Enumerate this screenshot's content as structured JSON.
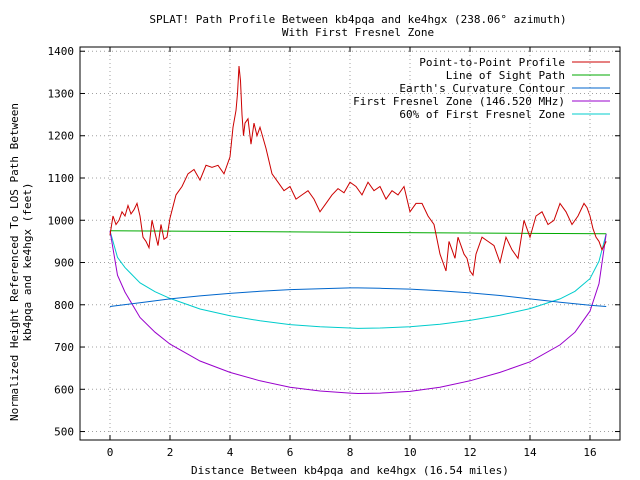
{
  "chart_data": {
    "type": "line",
    "title": "SPLAT! Path Profile Between kb4pqa and ke4hgx (238.06° azimuth)",
    "subtitle": "With First Fresnel Zone",
    "xlabel": "Distance Between kb4pqa and ke4hgx (16.54 miles)",
    "ylabel_line1": "Normalized Height Referenced To LOS Path Between",
    "ylabel_line2": "kb4pqa and ke4hgx (feet)",
    "xlim": [
      -1,
      17
    ],
    "ylim": [
      480,
      1410
    ],
    "xticks": [
      0,
      2,
      4,
      6,
      8,
      10,
      12,
      14,
      16
    ],
    "yticks": [
      500,
      600,
      700,
      800,
      900,
      1000,
      1100,
      1200,
      1300,
      1400
    ],
    "grid": true,
    "legend_position": "top-right",
    "series": [
      {
        "name": "Point-to-Point Profile",
        "color": "#cc0000",
        "x": [
          0,
          0.1,
          0.2,
          0.3,
          0.4,
          0.5,
          0.6,
          0.7,
          0.8,
          0.9,
          1.0,
          1.1,
          1.2,
          1.3,
          1.4,
          1.5,
          1.6,
          1.7,
          1.8,
          1.9,
          2.0,
          2.2,
          2.4,
          2.6,
          2.8,
          3.0,
          3.2,
          3.4,
          3.6,
          3.8,
          4.0,
          4.1,
          4.2,
          4.25,
          4.3,
          4.35,
          4.4,
          4.45,
          4.5,
          4.6,
          4.7,
          4.8,
          4.9,
          5.0,
          5.2,
          5.4,
          5.6,
          5.8,
          6.0,
          6.2,
          6.4,
          6.6,
          6.8,
          7.0,
          7.2,
          7.4,
          7.6,
          7.8,
          8.0,
          8.2,
          8.4,
          8.6,
          8.8,
          9.0,
          9.2,
          9.4,
          9.6,
          9.8,
          10.0,
          10.2,
          10.4,
          10.6,
          10.8,
          11.0,
          11.1,
          11.2,
          11.3,
          11.4,
          11.5,
          11.6,
          11.7,
          11.8,
          11.9,
          12.0,
          12.1,
          12.2,
          12.4,
          12.6,
          12.8,
          13.0,
          13.2,
          13.4,
          13.6,
          13.8,
          14.0,
          14.2,
          14.4,
          14.6,
          14.8,
          15.0,
          15.2,
          15.4,
          15.6,
          15.8,
          15.9,
          16.0,
          16.1,
          16.2,
          16.3,
          16.4,
          16.54
        ],
        "y": [
          965,
          1010,
          990,
          1000,
          1020,
          1010,
          1035,
          1015,
          1025,
          1040,
          1010,
          960,
          950,
          935,
          1000,
          970,
          940,
          990,
          955,
          960,
          1005,
          1060,
          1080,
          1110,
          1120,
          1095,
          1130,
          1125,
          1130,
          1110,
          1150,
          1220,
          1260,
          1300,
          1365,
          1330,
          1250,
          1200,
          1230,
          1240,
          1180,
          1230,
          1200,
          1220,
          1170,
          1110,
          1090,
          1070,
          1080,
          1050,
          1060,
          1070,
          1050,
          1020,
          1040,
          1060,
          1075,
          1065,
          1090,
          1080,
          1060,
          1090,
          1070,
          1080,
          1050,
          1070,
          1060,
          1080,
          1020,
          1040,
          1040,
          1010,
          990,
          920,
          900,
          880,
          950,
          930,
          910,
          960,
          940,
          920,
          910,
          880,
          870,
          920,
          960,
          950,
          940,
          900,
          960,
          930,
          910,
          1000,
          960,
          1010,
          1020,
          990,
          1000,
          1040,
          1020,
          990,
          1010,
          1040,
          1030,
          1010,
          980,
          960,
          950,
          930,
          950
        ]
      },
      {
        "name": "Line of Sight Path",
        "color": "#00aa00",
        "x": [
          0,
          16.54
        ],
        "y": [
          975,
          968
        ]
      },
      {
        "name": "Earth's Curvature Contour",
        "color": "#0066cc",
        "x": [
          0,
          1,
          2,
          3,
          4,
          5,
          6,
          7,
          8,
          8.27,
          9,
          10,
          11,
          12,
          13,
          14,
          15,
          16,
          16.54
        ],
        "y": [
          796,
          805,
          814,
          821,
          827,
          832,
          836,
          838,
          840,
          840,
          839,
          837,
          833,
          828,
          822,
          814,
          806,
          799,
          796
        ]
      },
      {
        "name": "First Fresnel Zone (146.520 MHz)",
        "color": "#9900cc",
        "x": [
          0,
          0.25,
          0.5,
          1,
          1.5,
          2,
          3,
          4,
          5,
          6,
          7,
          8,
          8.27,
          9,
          10,
          11,
          12,
          13,
          14,
          15,
          15.5,
          16,
          16.3,
          16.54
        ],
        "y": [
          975,
          870,
          830,
          770,
          735,
          707,
          667,
          640,
          620,
          605,
          596,
          591,
          590,
          591,
          595,
          605,
          620,
          640,
          665,
          705,
          735,
          785,
          850,
          968
        ]
      },
      {
        "name": "60% of First Fresnel Zone",
        "color": "#00cccc",
        "x": [
          0,
          0.25,
          0.5,
          1,
          1.5,
          2,
          3,
          4,
          5,
          6,
          7,
          8,
          8.27,
          9,
          10,
          11,
          12,
          13,
          14,
          15,
          15.5,
          16,
          16.3,
          16.54
        ],
        "y": [
          975,
          912,
          888,
          852,
          831,
          815,
          790,
          774,
          762,
          753,
          748,
          745,
          744,
          745,
          748,
          754,
          763,
          775,
          791,
          814,
          832,
          862,
          903,
          968
        ]
      }
    ]
  }
}
